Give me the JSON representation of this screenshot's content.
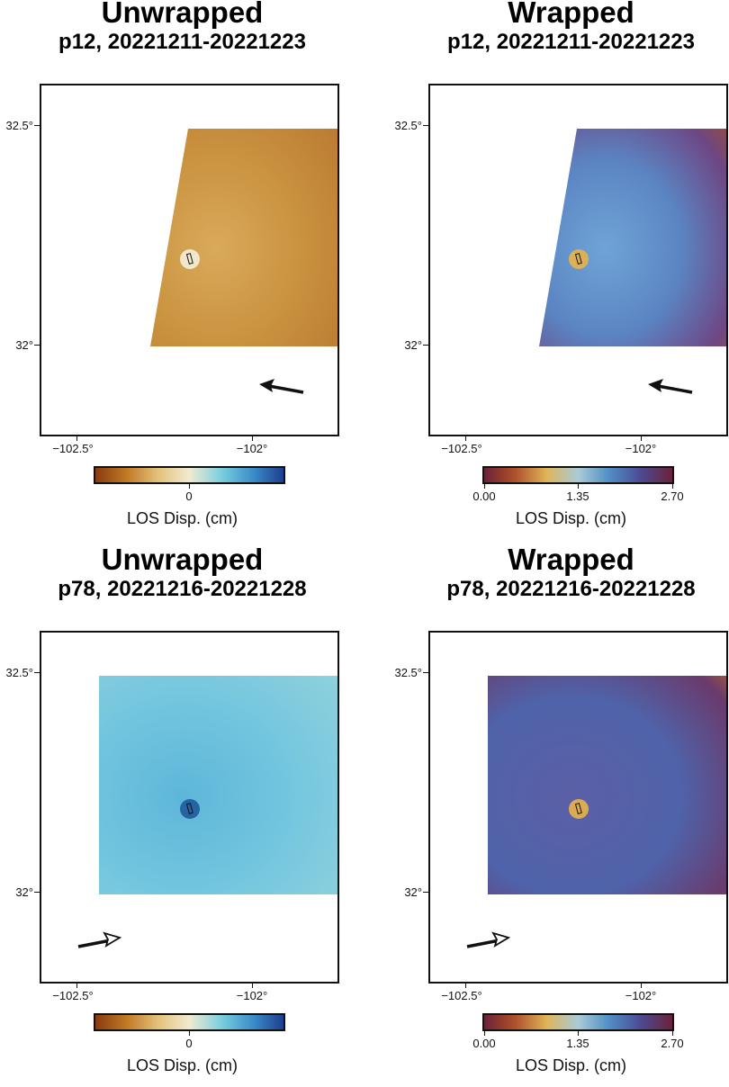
{
  "panels": [
    {
      "title": "Unwrapped",
      "subtitle": "p12, 20221211-20221223",
      "mode": "unwrapped",
      "coverage": "p12",
      "y_ticks": [
        "32.5°",
        "32°"
      ],
      "x_ticks": [
        "−102.5°",
        "−102°"
      ],
      "colorbar_ticks": [
        "0"
      ],
      "colorbar_label": "LOS Disp. (cm)",
      "heading": "left"
    },
    {
      "title": "Wrapped",
      "subtitle": "p12, 20221211-20221223",
      "mode": "wrapped",
      "coverage": "p12",
      "y_ticks": [
        "32.5°",
        "32°"
      ],
      "x_ticks": [
        "−102.5°",
        "−102°"
      ],
      "colorbar_ticks": [
        "0.00",
        "1.35",
        "2.70"
      ],
      "colorbar_label": "LOS Disp. (cm)",
      "heading": "left"
    },
    {
      "title": "Unwrapped",
      "subtitle": "p78, 20221216-20221228",
      "mode": "unwrapped",
      "coverage": "p78",
      "y_ticks": [
        "32.5°",
        "32°"
      ],
      "x_ticks": [
        "−102.5°",
        "−102°"
      ],
      "colorbar_ticks": [
        "0"
      ],
      "colorbar_label": "LOS Disp. (cm)",
      "heading": "right"
    },
    {
      "title": "Wrapped",
      "subtitle": "p78, 20221216-20221228",
      "mode": "wrapped",
      "coverage": "p78",
      "y_ticks": [
        "32.5°",
        "32°"
      ],
      "x_ticks": [
        "−102.5°",
        "−102°"
      ],
      "colorbar_ticks": [
        "0.00",
        "1.35",
        "2.70"
      ],
      "colorbar_label": "LOS Disp. (cm)",
      "heading": "right"
    }
  ],
  "colors": {
    "unwrapped_scale": [
      "#8a3a10",
      "#c07a25",
      "#e3c27a",
      "#f1ead0",
      "#7ccfe0",
      "#3b8fc9",
      "#1c3f8f"
    ],
    "wrapped_scale": [
      "#6b2138",
      "#b0522a",
      "#e0b55a",
      "#a9cbd8",
      "#4f8dc4",
      "#4c4a93",
      "#6b2138"
    ],
    "p12_unwrapped_fill": "#c98f3e",
    "p78_unwrapped_fill": "#6cc0dc",
    "wrapped_fill": "#5a4d93"
  }
}
